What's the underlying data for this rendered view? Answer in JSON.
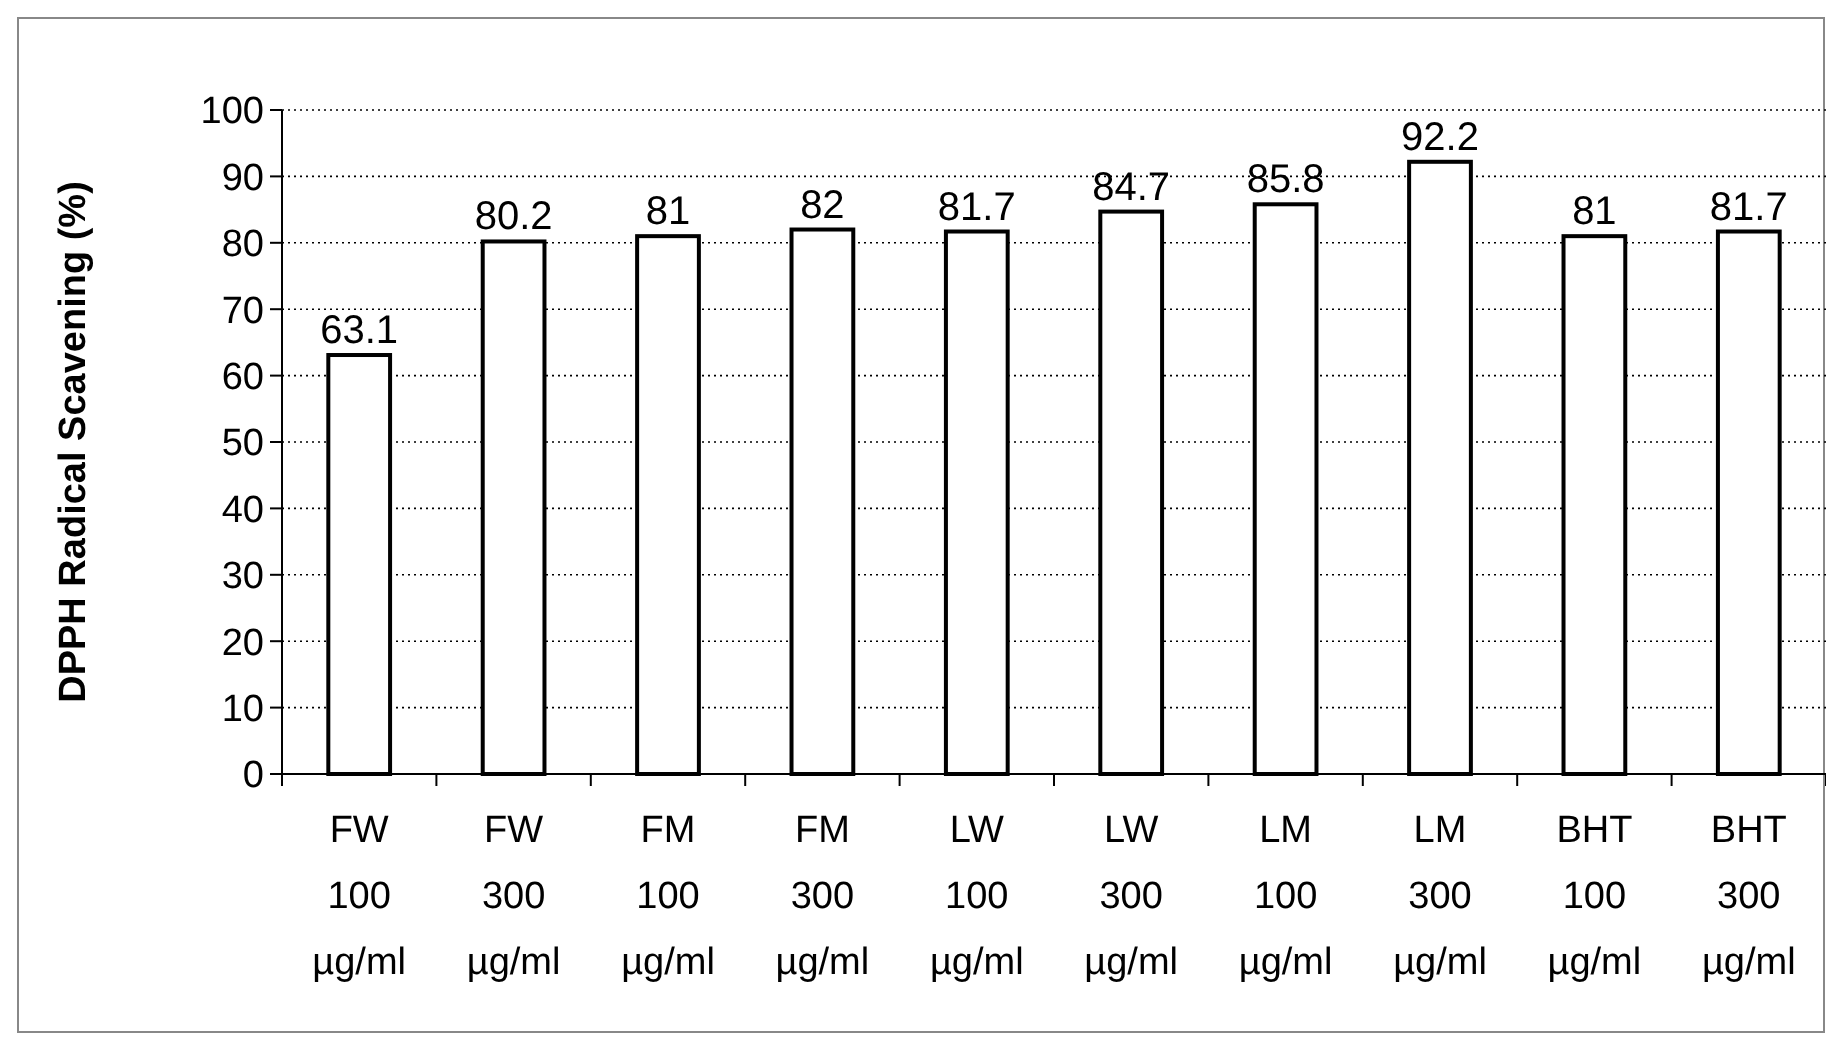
{
  "chart_data": {
    "type": "bar",
    "ylabel": "DPPH Radical Scavening (%)",
    "categories": [
      "FW 100 µg/ml",
      "FW 300 µg/ml",
      "FM 100 µg/ml",
      "FM 300 µg/ml",
      "LW 100 µg/ml",
      "LW 300 µg/ml",
      "LM 100 µg/ml",
      "LM 300 µg/ml",
      "BHT 100 µg/ml",
      "BHT 300 µg/ml"
    ],
    "values": [
      63.1,
      80.2,
      81,
      82,
      81.7,
      84.7,
      85.8,
      92.2,
      81,
      81.7
    ],
    "color": "#ffffff",
    "ylim": [
      0,
      100
    ],
    "yticks": [
      0,
      10,
      20,
      30,
      40,
      50,
      60,
      70,
      80,
      90,
      100
    ],
    "grid": "y",
    "data_labels": true
  }
}
